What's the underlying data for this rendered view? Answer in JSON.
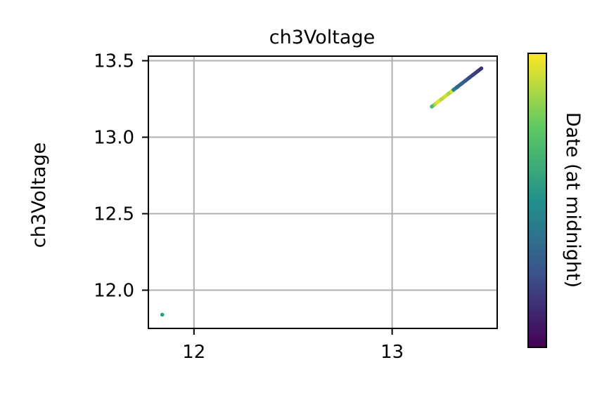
{
  "chart_data": {
    "type": "scatter",
    "title": "ch3Voltage",
    "xlabel": "",
    "ylabel": "ch3Voltage",
    "xlim": [
      11.77,
      13.53
    ],
    "ylim": [
      11.75,
      13.53
    ],
    "xticks": [
      12,
      13
    ],
    "xtick_labels": [
      "12",
      "13"
    ],
    "yticks": [
      12.0,
      12.5,
      13.0,
      13.5
    ],
    "ytick_labels": [
      "12.0",
      "12.5",
      "13.0",
      "13.5"
    ],
    "grid": true,
    "colorbar": {
      "label": "Date (at midnight)",
      "colormap": "viridis",
      "range": [
        0,
        1
      ],
      "colors": [
        "#440154",
        "#3b528b",
        "#21918c",
        "#5ec962",
        "#fde725"
      ]
    },
    "points": [
      {
        "x": 11.84,
        "y": 11.84,
        "c": 0.55
      },
      {
        "x": 13.2,
        "y": 13.2,
        "c": 0.68
      },
      {
        "x": 13.23,
        "y": 13.23,
        "c": 0.97
      },
      {
        "x": 13.25,
        "y": 13.25,
        "c": 0.88
      },
      {
        "x": 13.27,
        "y": 13.27,
        "c": 0.93
      },
      {
        "x": 13.29,
        "y": 13.29,
        "c": 0.85
      },
      {
        "x": 13.3,
        "y": 13.3,
        "c": 0.95
      },
      {
        "x": 13.31,
        "y": 13.31,
        "c": 0.45
      },
      {
        "x": 13.33,
        "y": 13.33,
        "c": 0.35
      },
      {
        "x": 13.35,
        "y": 13.35,
        "c": 0.3
      },
      {
        "x": 13.37,
        "y": 13.37,
        "c": 0.28
      },
      {
        "x": 13.39,
        "y": 13.39,
        "c": 0.22
      },
      {
        "x": 13.41,
        "y": 13.41,
        "c": 0.2
      },
      {
        "x": 13.43,
        "y": 13.43,
        "c": 0.18
      },
      {
        "x": 13.45,
        "y": 13.45,
        "c": 0.15
      }
    ]
  }
}
